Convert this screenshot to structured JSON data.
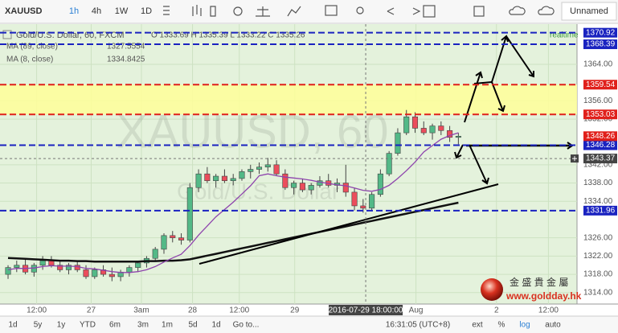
{
  "toolbar": {
    "symbol": "XAUUSD",
    "intervals": [
      "1h",
      "4h",
      "1W",
      "1D"
    ],
    "layout": "Unnamed"
  },
  "legend": {
    "title": "Gold/U.S. Dollar, 60, FXCM",
    "ohlc": "O 1333.69 H 1335.39 L 1333.22 C 1335.26",
    "realtime": "realtime"
  },
  "watermark": {
    "symbol": "XAUUSD, 60",
    "description": "Gold/U.S. Dollar"
  },
  "chart_data": {
    "type": "candlestick",
    "up_color": "#53b987",
    "down_color": "#eb4d5c",
    "candles": [
      [
        1318,
        1320,
        1317,
        1319.5
      ],
      [
        1319.5,
        1321,
        1318.5,
        1320
      ],
      [
        1320,
        1321.5,
        1318,
        1318.5
      ],
      [
        1318.5,
        1320.5,
        1317.5,
        1320
      ],
      [
        1320,
        1322,
        1319,
        1321
      ],
      [
        1321,
        1322,
        1319.5,
        1320
      ],
      [
        1320,
        1321,
        1318.5,
        1319
      ],
      [
        1319,
        1320.5,
        1318,
        1320
      ],
      [
        1320,
        1321,
        1318.5,
        1319
      ],
      [
        1319,
        1320,
        1317,
        1317.5
      ],
      [
        1317.5,
        1319.5,
        1317,
        1319
      ],
      [
        1319,
        1320,
        1317.5,
        1318
      ],
      [
        1318,
        1319.5,
        1316.5,
        1317.5
      ],
      [
        1317.5,
        1319,
        1316.5,
        1318.5
      ],
      [
        1318.5,
        1320,
        1317.5,
        1319.5
      ],
      [
        1319.5,
        1321,
        1318.5,
        1320.5
      ],
      [
        1320.5,
        1322,
        1319.5,
        1321.5
      ],
      [
        1321.5,
        1324,
        1321,
        1323.5
      ],
      [
        1323.5,
        1327,
        1322.5,
        1326.5
      ],
      [
        1326.5,
        1327.5,
        1325,
        1326
      ],
      [
        1326,
        1327,
        1324.5,
        1325.5
      ],
      [
        1325.5,
        1338,
        1325,
        1337
      ],
      [
        1337,
        1341,
        1336,
        1340
      ],
      [
        1340,
        1341.5,
        1338,
        1338.5
      ],
      [
        1338.5,
        1340,
        1337,
        1339.5
      ],
      [
        1339.5,
        1341,
        1338,
        1338.5
      ],
      [
        1338.5,
        1340,
        1337.5,
        1339
      ],
      [
        1339,
        1341,
        1338.5,
        1340.5
      ],
      [
        1340.5,
        1342,
        1339,
        1341
      ],
      [
        1341,
        1342.5,
        1340,
        1341.5
      ],
      [
        1341.5,
        1343.5,
        1340.5,
        1342
      ],
      [
        1342,
        1343,
        1339.5,
        1340
      ],
      [
        1340,
        1341,
        1336.5,
        1337
      ],
      [
        1337,
        1338.5,
        1335.5,
        1338
      ],
      [
        1338,
        1339,
        1336,
        1336.5
      ],
      [
        1336.5,
        1338,
        1335.5,
        1337.5
      ],
      [
        1337.5,
        1339.5,
        1337,
        1338.5
      ],
      [
        1338.5,
        1340,
        1337,
        1337.5
      ],
      [
        1337.5,
        1339,
        1336,
        1338
      ],
      [
        1338,
        1342,
        1335,
        1336
      ],
      [
        1336,
        1337,
        1332,
        1333
      ],
      [
        1333,
        1334.5,
        1331.5,
        1332.5
      ],
      [
        1332.5,
        1336,
        1332,
        1335.5
      ],
      [
        1335.5,
        1341,
        1335,
        1340
      ],
      [
        1340,
        1345,
        1339.5,
        1344.5
      ],
      [
        1344.5,
        1350,
        1344,
        1349
      ],
      [
        1349,
        1354,
        1348.5,
        1352.5
      ],
      [
        1352.5,
        1353.5,
        1349,
        1350
      ],
      [
        1350,
        1351.5,
        1348.5,
        1349
      ],
      [
        1349,
        1351,
        1347.5,
        1350.5
      ],
      [
        1350.5,
        1351.5,
        1348.5,
        1349.5
      ],
      [
        1349.5,
        1350.5,
        1347,
        1348
      ],
      [
        1348,
        1349,
        1346.5,
        1348.26
      ]
    ],
    "series": [
      {
        "name": "MA (89, close)",
        "legend_value": "1327.5554",
        "color": "#111111",
        "values": [
          1321.6,
          1321.5,
          1321.4,
          1321.3,
          1321.2,
          1321.1,
          1321,
          1321,
          1320.9,
          1320.9,
          1320.8,
          1320.8,
          1320.8,
          1320.8,
          1320.8,
          1320.8,
          1320.9,
          1320.9,
          1321,
          1321,
          1321.1,
          1321.3,
          1321.7,
          1322.1,
          1322.5,
          1322.9,
          1323.3,
          1323.7,
          1324.1,
          1324.5,
          1324.9,
          1325.3,
          1325.7,
          1326.1,
          1326.5,
          1326.9,
          1327.3,
          1327.7,
          1328.1,
          1328.5,
          1328.9,
          1329.3,
          1329.7,
          1330.1,
          1330.5,
          1330.9,
          1331.3,
          1331.7,
          1332.1,
          1332.5,
          1332.9,
          1333.3,
          1333.7
        ]
      },
      {
        "name": "MA (8, close)",
        "legend_value": "1334.8425",
        "color": "#8e44ad",
        "values": [
          1319,
          1319.3,
          1319.3,
          1319.4,
          1319.7,
          1319.9,
          1319.8,
          1319.8,
          1319.7,
          1319.3,
          1319.2,
          1318.9,
          1318.6,
          1318.4,
          1318.4,
          1318.6,
          1319,
          1319.7,
          1320.7,
          1321.6,
          1322.4,
          1324.3,
          1326.6,
          1328.6,
          1330.6,
          1332.2,
          1333.8,
          1335.6,
          1337.4,
          1339.6,
          1340,
          1339.6,
          1339.3,
          1339.1,
          1338.9,
          1338.6,
          1338.2,
          1337.9,
          1337.6,
          1337.4,
          1336.9,
          1336.4,
          1336.2,
          1336.6,
          1337.5,
          1339,
          1340.7,
          1342.6,
          1344.8,
          1346.2,
          1347.6,
          1348.4,
          1349
        ]
      }
    ],
    "xlim": [
      -0.93,
      65.7
    ],
    "xticks": [
      {
        "value": 3.3,
        "label": "12:00"
      },
      {
        "value": 9.6,
        "label": "27"
      },
      {
        "value": 15.4,
        "label": "3am"
      },
      {
        "value": 21.3,
        "label": "28"
      },
      {
        "value": 26.7,
        "label": "12:00"
      },
      {
        "value": 33.1,
        "label": "29"
      },
      {
        "value": 47.1,
        "label": "Aug"
      },
      {
        "value": 56.4,
        "label": "2"
      },
      {
        "value": 62.4,
        "label": "12:00"
      }
    ],
    "ylim": [
      1311.5,
      1372.8
    ],
    "yticks": [
      {
        "value": 1364,
        "label": "1364.00"
      },
      {
        "value": 1356,
        "label": "1356.00"
      },
      {
        "value": 1352,
        "label": "1352.00"
      },
      {
        "value": 1342,
        "label": "1342.00"
      },
      {
        "value": 1338,
        "label": "1338.00"
      },
      {
        "value": 1334,
        "label": "1334.00"
      },
      {
        "value": 1326,
        "label": "1326.00"
      },
      {
        "value": 1322,
        "label": "1322.00"
      },
      {
        "value": 1318,
        "label": "1318.00"
      },
      {
        "value": 1314,
        "label": "1314.00"
      }
    ],
    "grid": true,
    "levels": [
      {
        "value": 1370.92,
        "color": "#1a23c0"
      },
      {
        "value": 1368.39,
        "color": "#1a23c0"
      },
      {
        "value": 1359.54,
        "color": "#e0201b"
      },
      {
        "value": 1353.03,
        "color": "#e0201b"
      },
      {
        "value": 1346.28,
        "color": "#1a23c0"
      },
      {
        "value": 1331.96,
        "color": "#1a23c0"
      }
    ],
    "last_price": 1348.26,
    "crosshair": {
      "x": {
        "value": 41.3,
        "label": "2016-07-29 18:00:00"
      },
      "y": 1343.37
    }
  },
  "range_bar": {
    "ranges": [
      "1d",
      "5y",
      "1y",
      "YTD",
      "6m",
      "3m",
      "1m",
      "5d",
      "1d"
    ],
    "goto": "Go to...",
    "time": "16:31:05 (UTC+8)",
    "options": [
      "ext",
      "%",
      "log",
      "auto"
    ]
  },
  "logo": {
    "name": "金 盛 貴 金 屬",
    "url": "www.goldday.hk"
  }
}
